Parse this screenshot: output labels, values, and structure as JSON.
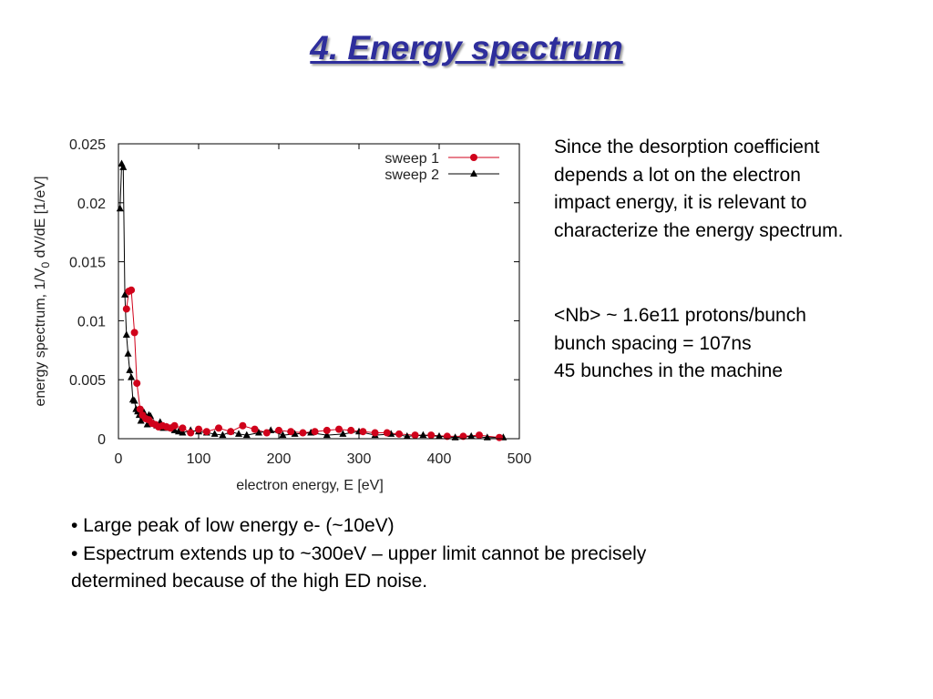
{
  "slide": {
    "title": "4. Energy spectrum",
    "description_lines": [
      "Since the desorption coefficient",
      "depends a lot on the electron",
      "impact energy, it is relevant to",
      "characterize the energy spectrum."
    ],
    "beam_lines": [
      "<Nb> ~ 1.6e11 protons/bunch",
      "bunch spacing = 107ns",
      "45 bunches in the machine"
    ],
    "bullets": [
      "• Large peak of low energy e- (~10eV)",
      "• Espectrum extends up to ~300eV – upper limit cannot be precisely",
      "determined because of the high ED noise."
    ]
  },
  "colors": {
    "title": "#2e2e9c",
    "sweep1": "#d0021b",
    "sweep2": "#000000"
  },
  "chart_data": {
    "type": "scatter",
    "xlabel": "electron energy, E [eV]",
    "ylabel": "energy spectrum, 1/V0 dV/dE [1/eV]",
    "ylabel_parts": {
      "before": "energy spectrum, 1/V",
      "sub": "0",
      "after": " dV/dE [1/eV]"
    },
    "xlim": [
      0,
      500
    ],
    "ylim": [
      0,
      0.025
    ],
    "xticks": [
      "0",
      "100",
      "200",
      "300",
      "400",
      "500"
    ],
    "yticks": [
      "0",
      "0.005",
      "0.01",
      "0.015",
      "0.02",
      "0.025"
    ],
    "grid": false,
    "legend_position": "top-right",
    "series": [
      {
        "name": "sweep 1",
        "marker": "circle",
        "line": true,
        "x": [
          10,
          13,
          16,
          20,
          23,
          27,
          30,
          34,
          38,
          42,
          46,
          50,
          55,
          60,
          65,
          70,
          80,
          90,
          100,
          110,
          125,
          140,
          155,
          170,
          185,
          200,
          215,
          230,
          245,
          260,
          275,
          290,
          305,
          320,
          335,
          350,
          370,
          390,
          410,
          430,
          450,
          475
        ],
        "y": [
          0.011,
          0.0125,
          0.0126,
          0.009,
          0.0047,
          0.0025,
          0.002,
          0.0017,
          0.0016,
          0.0013,
          0.0012,
          0.001,
          0.0011,
          0.001,
          0.0009,
          0.0011,
          0.0009,
          0.0005,
          0.0008,
          0.0006,
          0.0009,
          0.0006,
          0.0011,
          0.0008,
          0.0005,
          0.0007,
          0.0006,
          0.0005,
          0.0006,
          0.0007,
          0.0008,
          0.0007,
          0.0006,
          0.0005,
          0.0005,
          0.0004,
          0.0003,
          0.0003,
          0.0002,
          0.0002,
          0.0003,
          0.0001
        ]
      },
      {
        "name": "sweep 2",
        "marker": "triangle",
        "line": true,
        "x": [
          2,
          4,
          6,
          8,
          10,
          12,
          14,
          16,
          18,
          20,
          22,
          24,
          26,
          28,
          30,
          32,
          34,
          36,
          38,
          40,
          44,
          48,
          52,
          56,
          60,
          65,
          70,
          75,
          80,
          90,
          100,
          110,
          120,
          130,
          140,
          150,
          160,
          175,
          190,
          205,
          220,
          240,
          260,
          280,
          300,
          320,
          340,
          360,
          380,
          400,
          420,
          440,
          460,
          480
        ],
        "y": [
          0.0195,
          0.0233,
          0.023,
          0.0122,
          0.0088,
          0.0072,
          0.0058,
          0.0052,
          0.0033,
          0.0032,
          0.0025,
          0.0023,
          0.002,
          0.0015,
          0.0024,
          0.0022,
          0.0018,
          0.0012,
          0.002,
          0.0019,
          0.0013,
          0.0011,
          0.0014,
          0.0009,
          0.001,
          0.0009,
          0.0007,
          0.0006,
          0.0005,
          0.0007,
          0.0006,
          0.0005,
          0.0004,
          0.0003,
          0.0006,
          0.0004,
          0.0003,
          0.0005,
          0.0007,
          0.0003,
          0.0004,
          0.0005,
          0.0003,
          0.0004,
          0.0006,
          0.0003,
          0.0004,
          0.0002,
          0.0003,
          0.0002,
          0.0001,
          0.0002,
          0.0001,
          0.0001
        ]
      }
    ]
  }
}
